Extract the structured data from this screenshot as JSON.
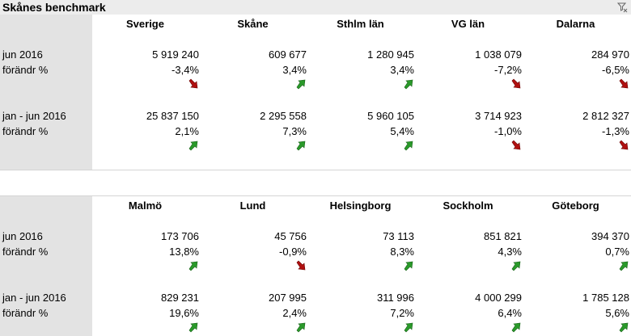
{
  "title": "Skånes benchmark",
  "tables": [
    {
      "columns": [
        "Sverige",
        "Skåne",
        "Sthlm län",
        "VG län",
        "Dalarna"
      ],
      "rows": [
        {
          "label": "jun 2016",
          "values": [
            "5 919 240",
            "609 677",
            "1 280 945",
            "1 038 079",
            "284 970"
          ]
        },
        {
          "label": "förändr %",
          "values": [
            "-3,4%",
            "3,4%",
            "3,4%",
            "-7,2%",
            "-6,5%"
          ]
        },
        {
          "label": "jan - jun 2016",
          "values": [
            "25 837 150",
            "2 295 558",
            "5 960 105",
            "3 714 923",
            "2 812 327"
          ]
        },
        {
          "label": "förändr %",
          "values": [
            "2,1%",
            "7,3%",
            "5,4%",
            "-1,0%",
            "-1,3%"
          ]
        }
      ]
    },
    {
      "columns": [
        "Malmö",
        "Lund",
        "Helsingborg",
        "Sockholm",
        "Göteborg"
      ],
      "rows": [
        {
          "label": "jun 2016",
          "values": [
            "173 706",
            "45 756",
            "73 113",
            "851 821",
            "394 370"
          ]
        },
        {
          "label": "förändr %",
          "values": [
            "13,8%",
            "-0,9%",
            "8,3%",
            "4,3%",
            "0,7%"
          ]
        },
        {
          "label": "jan - jun 2016",
          "values": [
            "829 231",
            "207 995",
            "311 996",
            "4 000 299",
            "1 785 128"
          ]
        },
        {
          "label": "förändr %",
          "values": [
            "19,6%",
            "2,4%",
            "7,2%",
            "6,4%",
            "5,6%"
          ]
        }
      ]
    }
  ]
}
